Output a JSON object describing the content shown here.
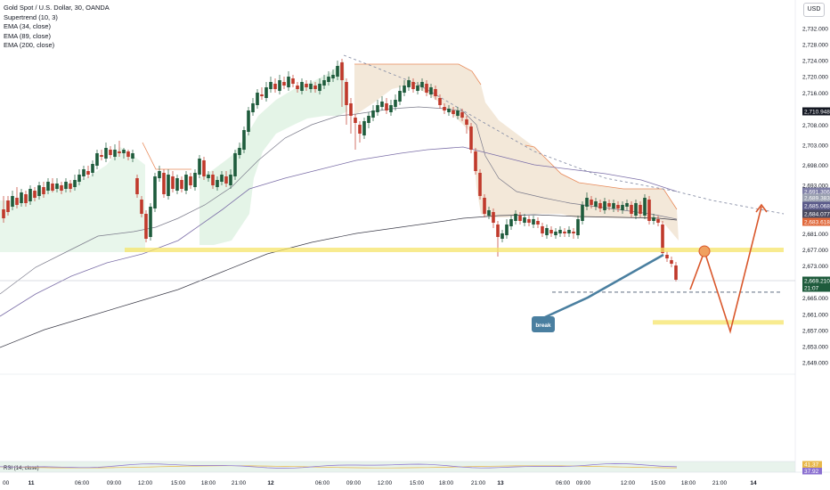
{
  "header": {
    "title": "Gold Spot / U.S. Dollar, 30, OANDA",
    "indicators": [
      "Supertrend (10, 3)",
      "EMA (34, close)",
      "EMA (89, close)",
      "EMA (200, close)"
    ],
    "currency": "USD"
  },
  "chart_data": [
    {
      "type": "candlestick",
      "title": "Gold Spot / U.S. Dollar, 30, OANDA",
      "ylim": [
        2647,
        2734
      ],
      "y_ticks": [
        2649.0,
        2653.0,
        2657.0,
        2661.0,
        2665.0,
        2669.0,
        2673.0,
        2677.0,
        2681.0,
        2685.0,
        2689.0,
        2693.0,
        2698.0,
        2703.0,
        2708.0,
        2712.0,
        2716.0,
        2720.0,
        2724.0,
        2728.0,
        2732.0
      ],
      "x_ticks": [
        "00",
        "11",
        "06:00",
        "09:00",
        "12:00",
        "15:00",
        "18:00",
        "21:00",
        "12",
        "06:00",
        "09:00",
        "12:00",
        "15:00",
        "18:00",
        "21:00",
        "13",
        "06:00",
        "09:00",
        "12:00",
        "15:00",
        "18:00",
        "21:00",
        "14"
      ],
      "price_labels": [
        {
          "value": "2,710.948",
          "color": "#131722"
        },
        {
          "value": "2,691.306",
          "color": "#7e7ea6"
        },
        {
          "value": "2,689.383",
          "color": "#9aa0b0"
        },
        {
          "value": "2,685.068",
          "color": "#5a5a8a"
        },
        {
          "value": "2,684.077",
          "color": "#4a4a60"
        },
        {
          "value": "2,683.618",
          "color": "#e0683a"
        },
        {
          "value": "2,669.210",
          "color": "#1e5b3c"
        }
      ],
      "countdown": "21:07",
      "annotations": {
        "break_label": "break",
        "horizontal_levels": [
          2677,
          2659
        ],
        "dashed_level": 2666.5
      },
      "colors": {
        "up": "#26a69a",
        "down": "#ef5350",
        "dark_up": "#1e5b3c",
        "dark_down": "#c0392b",
        "trend_arrow": "#d9572b",
        "support": "#f5e46a",
        "break": "#4a7fa0"
      }
    },
    {
      "type": "line",
      "title": "RSI (14, close)",
      "ylim": [
        0,
        100
      ],
      "series": [
        {
          "name": "RSI",
          "last": "41.37"
        },
        {
          "name": "MA",
          "last": "37.92"
        }
      ],
      "labels": [
        "41.37",
        "37.92"
      ]
    }
  ]
}
